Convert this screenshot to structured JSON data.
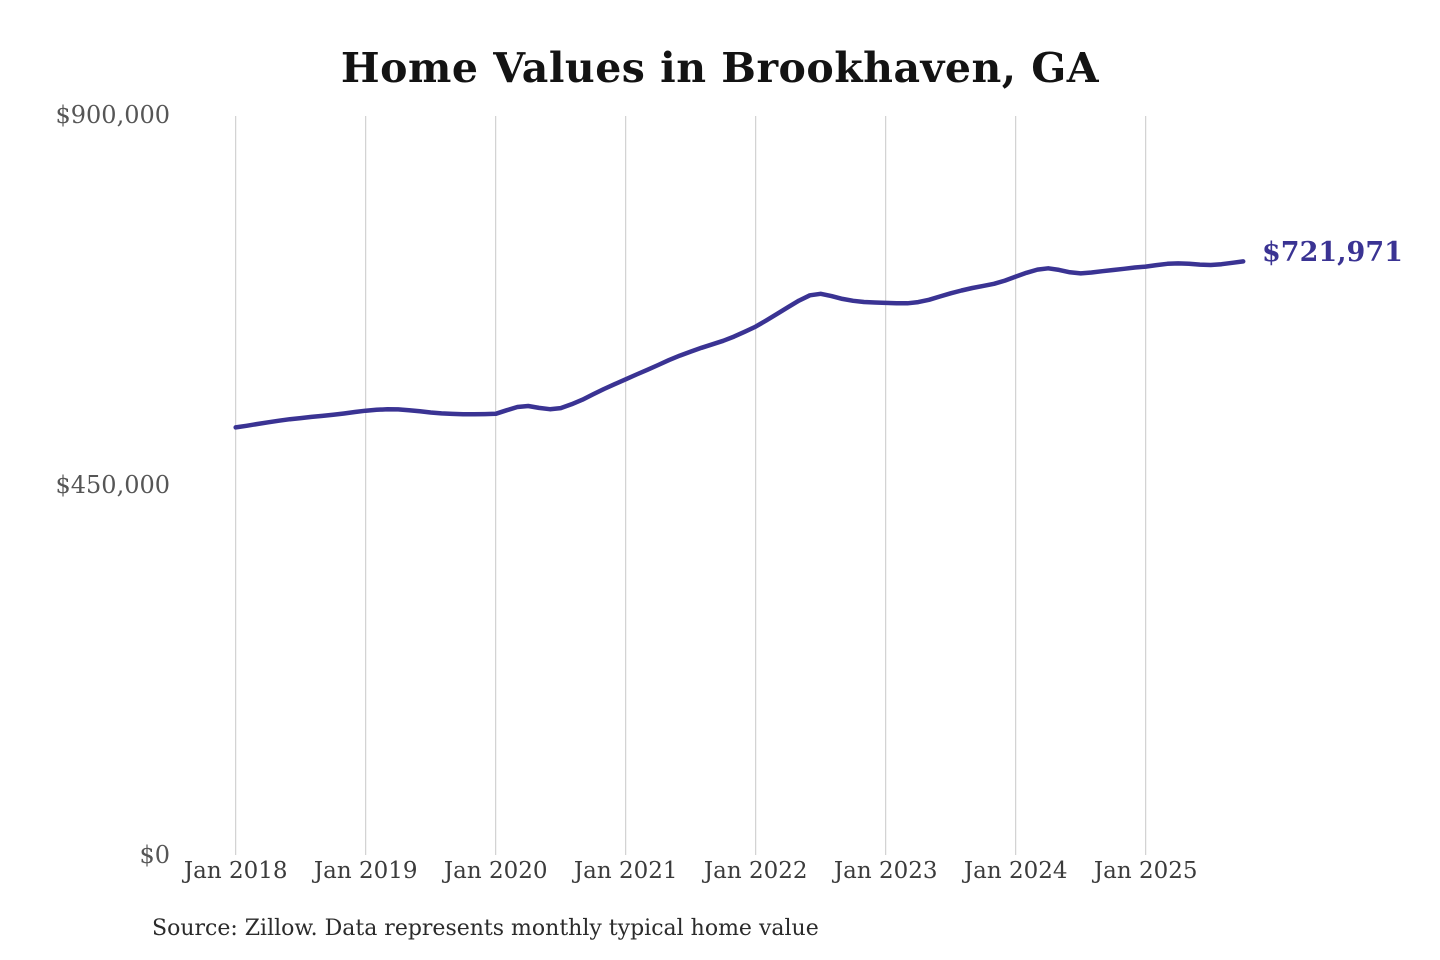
{
  "page": {
    "background": "#ffffff"
  },
  "chart_data": {
    "type": "line",
    "title": "Home Values in Brookhaven, GA",
    "source_note": "Source: Zillow. Data represents monthly typical home value",
    "series_name": "Monthly typical home value",
    "line_color": "#3a3393",
    "grid_color": "#c8c8c8",
    "end_label": "$721,971",
    "end_value": 721971,
    "ylim": [
      0,
      900000
    ],
    "grid": "vertical-only",
    "legend": "none",
    "y_ticks": [
      {
        "value": 900000,
        "label": "$900,000"
      },
      {
        "value": 450000,
        "label": "$450,000"
      },
      {
        "value": 0,
        "label": "$0"
      }
    ],
    "x_ticks": [
      "Jan 2018",
      "Jan 2019",
      "Jan 2020",
      "Jan 2021",
      "Jan 2022",
      "Jan 2023",
      "Jan 2024",
      "Jan 2025"
    ],
    "x": [
      "2018-01",
      "2018-02",
      "2018-03",
      "2018-04",
      "2018-05",
      "2018-06",
      "2018-07",
      "2018-08",
      "2018-09",
      "2018-10",
      "2018-11",
      "2018-12",
      "2019-01",
      "2019-02",
      "2019-03",
      "2019-04",
      "2019-05",
      "2019-06",
      "2019-07",
      "2019-08",
      "2019-09",
      "2019-10",
      "2019-11",
      "2019-12",
      "2020-01",
      "2020-02",
      "2020-03",
      "2020-04",
      "2020-05",
      "2020-06",
      "2020-07",
      "2020-08",
      "2020-09",
      "2020-10",
      "2020-11",
      "2020-12",
      "2021-01",
      "2021-02",
      "2021-03",
      "2021-04",
      "2021-05",
      "2021-06",
      "2021-07",
      "2021-08",
      "2021-09",
      "2021-10",
      "2021-11",
      "2021-12",
      "2022-01",
      "2022-02",
      "2022-03",
      "2022-04",
      "2022-05",
      "2022-06",
      "2022-07",
      "2022-08",
      "2022-09",
      "2022-10",
      "2022-11",
      "2022-12",
      "2023-01",
      "2023-02",
      "2023-03",
      "2023-04",
      "2023-05",
      "2023-06",
      "2023-07",
      "2023-08",
      "2023-09",
      "2023-10",
      "2023-11",
      "2023-12",
      "2024-01",
      "2024-02",
      "2024-03",
      "2024-04",
      "2024-05",
      "2024-06",
      "2024-07",
      "2024-08",
      "2024-09",
      "2024-10",
      "2024-11",
      "2024-12",
      "2025-01",
      "2025-02",
      "2025-03",
      "2025-04",
      "2025-05",
      "2025-06",
      "2025-07",
      "2025-08",
      "2025-09",
      "2025-10"
    ],
    "values": [
      520000,
      522000,
      524200,
      526300,
      528200,
      530000,
      531400,
      532800,
      534100,
      535400,
      537000,
      538800,
      540400,
      541500,
      542100,
      542000,
      541000,
      539600,
      538200,
      537100,
      536500,
      536100,
      536000,
      536200,
      536600,
      540800,
      544900,
      546100,
      543800,
      542200,
      543500,
      548200,
      553800,
      560300,
      566700,
      572700,
      578500,
      584400,
      590100,
      596000,
      601900,
      607400,
      612300,
      616900,
      621100,
      625400,
      630500,
      636400,
      642600,
      650300,
      658300,
      666400,
      674300,
      680700,
      682600,
      679800,
      676300,
      674000,
      672600,
      671900,
      671500,
      671000,
      671000,
      672400,
      675300,
      679300,
      683100,
      686600,
      689600,
      692100,
      694700,
      698600,
      703400,
      708100,
      712000,
      713600,
      711600,
      708700,
      707400,
      708400,
      710000,
      711500,
      713000,
      714500,
      715600,
      717500,
      719000,
      719500,
      719000,
      718100,
      717600,
      718500,
      720300,
      721971
    ]
  }
}
